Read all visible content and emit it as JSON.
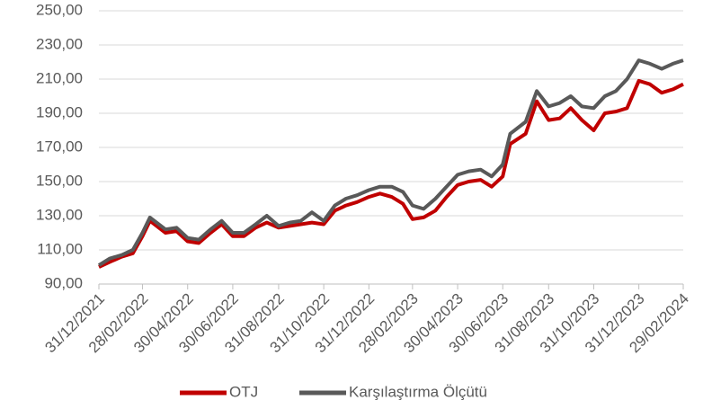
{
  "chart_data": {
    "type": "line",
    "x": [
      "31/12/2021",
      "15/01/2022",
      "31/01/2022",
      "15/02/2022",
      "28/02/2022",
      "10/03/2022",
      "31/03/2022",
      "15/04/2022",
      "30/04/2022",
      "15/05/2022",
      "31/05/2022",
      "15/06/2022",
      "30/06/2022",
      "15/07/2022",
      "31/07/2022",
      "15/08/2022",
      "31/08/2022",
      "15/09/2022",
      "30/09/2022",
      "15/10/2022",
      "31/10/2022",
      "15/11/2022",
      "30/11/2022",
      "15/12/2022",
      "31/12/2022",
      "15/01/2023",
      "31/01/2023",
      "15/02/2023",
      "28/02/2023",
      "15/03/2023",
      "31/03/2023",
      "15/04/2023",
      "30/04/2023",
      "15/05/2023",
      "31/05/2023",
      "15/06/2023",
      "30/06/2023",
      "10/07/2023",
      "31/07/2023",
      "15/08/2023",
      "31/08/2023",
      "15/09/2023",
      "30/09/2023",
      "15/10/2023",
      "31/10/2023",
      "15/11/2023",
      "30/11/2023",
      "15/12/2023",
      "31/12/2023",
      "15/01/2024",
      "31/01/2024",
      "15/02/2024",
      "29/02/2024"
    ],
    "series": [
      {
        "name": "OTJ",
        "color": "#c00000",
        "values": [
          100,
          103,
          106,
          108,
          118,
          127,
          120,
          121,
          115,
          114,
          120,
          125,
          118,
          118,
          123,
          126,
          123,
          124,
          125,
          126,
          125,
          133,
          136,
          138,
          141,
          143,
          141,
          137,
          128,
          129,
          133,
          141,
          148,
          150,
          151,
          147,
          153,
          172,
          178,
          197,
          186,
          187,
          193,
          186,
          180,
          190,
          191,
          193,
          209,
          207,
          202,
          204,
          207
        ]
      },
      {
        "name": "Karşılaştırma Ölçütü",
        "color": "#595959",
        "values": [
          101,
          105,
          107,
          110,
          120,
          129,
          122,
          123,
          117,
          116,
          122,
          127,
          120,
          120,
          125,
          130,
          124,
          126,
          127,
          132,
          127,
          136,
          140,
          142,
          145,
          147,
          147,
          144,
          136,
          134,
          140,
          147,
          154,
          156,
          157,
          153,
          160,
          178,
          185,
          203,
          194,
          196,
          200,
          194,
          193,
          200,
          203,
          210,
          221,
          219,
          216,
          219,
          221
        ]
      }
    ],
    "xlim": [
      "31/12/2021",
      "29/02/2024"
    ],
    "xticks": [
      "31/12/2021",
      "28/02/2022",
      "30/04/2022",
      "30/06/2022",
      "31/08/2022",
      "31/10/2022",
      "31/12/2022",
      "28/02/2023",
      "30/04/2023",
      "30/06/2023",
      "31/08/2023",
      "31/10/2023",
      "31/12/2023",
      "29/02/2024"
    ],
    "ylim": [
      90,
      250
    ],
    "yticks": [
      {
        "value": 90,
        "label": "90,00"
      },
      {
        "value": 110,
        "label": "110,00"
      },
      {
        "value": 130,
        "label": "130,00"
      },
      {
        "value": 150,
        "label": "150,00"
      },
      {
        "value": 170,
        "label": "170,00"
      },
      {
        "value": 190,
        "label": "190,00"
      },
      {
        "value": 210,
        "label": "210,00"
      },
      {
        "value": 230,
        "label": "230,00"
      },
      {
        "value": 250,
        "label": "250,00"
      }
    ],
    "grid": true
  }
}
